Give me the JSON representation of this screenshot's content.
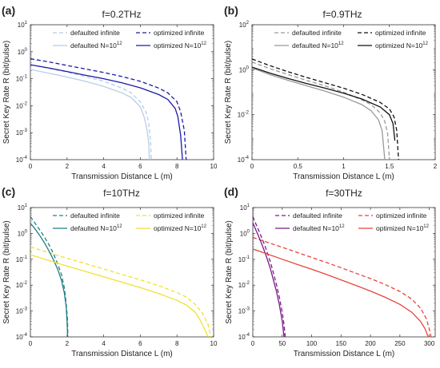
{
  "chart_data": [
    {
      "type": "line",
      "panel_label": "(a)",
      "title": "f=0.2THz",
      "xlabel": "Transmission Distance L (m)",
      "ylabel": "Secret Key Rate R (bit/pulse)",
      "xlim": [
        0,
        10
      ],
      "ylim_log10": [
        -4,
        1
      ],
      "log_y": true,
      "x_ticks": [
        "0",
        "2",
        "4",
        "6",
        "8",
        "10"
      ],
      "y_ticks": [
        {
          "base": "10",
          "exp": "1"
        },
        {
          "base": "10",
          "exp": "0"
        },
        {
          "base": "10",
          "exp": "-1"
        },
        {
          "base": "10",
          "exp": "-2"
        },
        {
          "base": "10",
          "exp": "-3"
        },
        {
          "base": "10",
          "exp": "-4"
        }
      ],
      "legend_position": "top-right",
      "legend": [
        {
          "text": "defaulted infinite",
          "sup": ""
        },
        {
          "text": "optimized infinite",
          "sup": ""
        },
        {
          "text": "defaulted N=10",
          "sup": "12"
        },
        {
          "text": "optimized N=10",
          "sup": "12"
        }
      ],
      "series": [
        {
          "color": "#b8cde8",
          "dashed": true,
          "x": [
            0,
            1,
            2,
            3,
            4,
            5,
            5.5,
            6,
            6.3,
            6.45,
            6.55,
            6.6
          ],
          "y": [
            0.33,
            0.24,
            0.175,
            0.12,
            0.08,
            0.045,
            0.03,
            0.014,
            0.006,
            0.0025,
            0.0006,
            0.0001
          ]
        },
        {
          "color": "#1a1aa8",
          "dashed": true,
          "x": [
            0,
            1,
            2,
            3,
            4,
            5,
            6,
            7,
            7.5,
            8,
            8.2,
            8.4,
            8.5
          ],
          "y": [
            0.55,
            0.42,
            0.31,
            0.23,
            0.17,
            0.12,
            0.08,
            0.045,
            0.03,
            0.014,
            0.006,
            0.0012,
            0.0001
          ]
        },
        {
          "color": "#b8cde8",
          "dashed": false,
          "x": [
            0,
            1,
            2,
            3,
            4,
            5,
            5.5,
            6,
            6.2,
            6.35,
            6.45,
            6.5
          ],
          "y": [
            0.22,
            0.16,
            0.115,
            0.08,
            0.052,
            0.03,
            0.02,
            0.009,
            0.004,
            0.0015,
            0.0005,
            0.0001
          ]
        },
        {
          "color": "#1a1aa8",
          "dashed": false,
          "x": [
            0,
            1,
            2,
            3,
            4,
            5,
            6,
            7,
            7.5,
            7.9,
            8.05,
            8.2,
            8.3
          ],
          "y": [
            0.33,
            0.25,
            0.185,
            0.135,
            0.1,
            0.07,
            0.046,
            0.026,
            0.017,
            0.008,
            0.004,
            0.0008,
            0.0001
          ]
        }
      ]
    },
    {
      "type": "line",
      "panel_label": "(b)",
      "title": "f=0.9THz",
      "xlabel": "Transmission Distance L (m)",
      "ylabel": "Secret Key Rate R (bit/pulse)",
      "xlim": [
        0,
        2
      ],
      "ylim_log10": [
        -4,
        2
      ],
      "log_y": true,
      "x_ticks": [
        "0",
        "0.5",
        "1",
        "1.5",
        "2"
      ],
      "y_ticks": [
        {
          "base": "10",
          "exp": "2"
        },
        {
          "base": "10",
          "exp": "0"
        },
        {
          "base": "10",
          "exp": "-2"
        },
        {
          "base": "10",
          "exp": "-4"
        }
      ],
      "legend_position": "top-right",
      "legend": [
        {
          "text": "defaulted infinite",
          "sup": ""
        },
        {
          "text": "optimized infinite",
          "sup": ""
        },
        {
          "text": "defaulted N=10",
          "sup": "12"
        },
        {
          "text": "optimized N=10",
          "sup": "12"
        }
      ],
      "series": [
        {
          "color": "#999999",
          "dashed": true,
          "x": [
            0,
            0.2,
            0.4,
            0.6,
            0.8,
            1.0,
            1.2,
            1.3,
            1.4,
            1.45,
            1.48,
            1.5
          ],
          "y": [
            2.2,
            1.1,
            0.6,
            0.33,
            0.19,
            0.1,
            0.045,
            0.028,
            0.012,
            0.005,
            0.0015,
            0.0001
          ]
        },
        {
          "color": "#111111",
          "dashed": true,
          "x": [
            0,
            0.2,
            0.4,
            0.6,
            0.8,
            1.0,
            1.2,
            1.4,
            1.5,
            1.55,
            1.58,
            1.6
          ],
          "y": [
            3.0,
            1.5,
            0.8,
            0.45,
            0.26,
            0.15,
            0.08,
            0.035,
            0.018,
            0.008,
            0.002,
            0.0001
          ]
        },
        {
          "color": "#999999",
          "dashed": false,
          "x": [
            0,
            0.2,
            0.4,
            0.6,
            0.8,
            1.0,
            1.2,
            1.3,
            1.38,
            1.42,
            1.45
          ],
          "y": [
            1.2,
            0.6,
            0.33,
            0.19,
            0.11,
            0.06,
            0.028,
            0.015,
            0.006,
            0.002,
            0.0001
          ]
        },
        {
          "color": "#111111",
          "dashed": false,
          "x": [
            0,
            0.2,
            0.4,
            0.6,
            0.8,
            1.0,
            1.2,
            1.4,
            1.5,
            1.54,
            1.56
          ],
          "y": [
            1.3,
            0.7,
            0.4,
            0.24,
            0.15,
            0.09,
            0.05,
            0.022,
            0.01,
            0.004,
            0.0007
          ]
        }
      ]
    },
    {
      "type": "line",
      "panel_label": "(c)",
      "title": "f=10THz",
      "xlabel": "Transmission Distance L (m)",
      "ylabel": "Secret Key Rate R (bit/pulse)",
      "xlim": [
        0,
        10
      ],
      "ylim_log10": [
        -4,
        1
      ],
      "log_y": true,
      "x_ticks": [
        "0",
        "2",
        "4",
        "6",
        "8",
        "10"
      ],
      "y_ticks": [
        {
          "base": "10",
          "exp": "1"
        },
        {
          "base": "10",
          "exp": "0"
        },
        {
          "base": "10",
          "exp": "-1"
        },
        {
          "base": "10",
          "exp": "-2"
        },
        {
          "base": "10",
          "exp": "-3"
        },
        {
          "base": "10",
          "exp": "-4"
        }
      ],
      "legend_position": "top-right",
      "legend": [
        {
          "text": "defaulted infinite",
          "sup": ""
        },
        {
          "text": "optimized infinite",
          "sup": ""
        },
        {
          "text": "defaulted N=10",
          "sup": "12"
        },
        {
          "text": "optimized N=10",
          "sup": "12"
        }
      ],
      "series": [
        {
          "color": "#1f7f86",
          "dashed": true,
          "x": [
            0,
            0.25,
            0.5,
            0.75,
            1.0,
            1.25,
            1.5,
            1.7,
            1.85,
            1.95,
            2.02,
            2.05
          ],
          "y": [
            4.5,
            2.5,
            1.4,
            0.75,
            0.38,
            0.17,
            0.065,
            0.025,
            0.008,
            0.002,
            0.0005,
            0.0001
          ]
        },
        {
          "color": "#f2e030",
          "dashed": true,
          "x": [
            0,
            1,
            2,
            3,
            4,
            5,
            6,
            7,
            8,
            8.5,
            9,
            9.4,
            9.7,
            9.85
          ],
          "y": [
            0.3,
            0.18,
            0.11,
            0.068,
            0.042,
            0.026,
            0.016,
            0.0095,
            0.0052,
            0.0035,
            0.0018,
            0.0008,
            0.0003,
            0.0001
          ]
        },
        {
          "color": "#1f7f86",
          "dashed": false,
          "x": [
            0,
            0.25,
            0.5,
            0.75,
            1.0,
            1.25,
            1.5,
            1.7,
            1.85,
            1.95,
            2.0,
            2.03
          ],
          "y": [
            2.5,
            1.5,
            0.85,
            0.45,
            0.22,
            0.1,
            0.04,
            0.015,
            0.005,
            0.0015,
            0.0004,
            0.0001
          ]
        },
        {
          "color": "#f2e030",
          "dashed": false,
          "x": [
            0,
            1,
            2,
            3,
            4,
            5,
            6,
            7,
            8,
            8.5,
            9,
            9.3,
            9.55,
            9.7
          ],
          "y": [
            0.15,
            0.09,
            0.055,
            0.034,
            0.021,
            0.013,
            0.008,
            0.0047,
            0.0026,
            0.0017,
            0.0009,
            0.0004,
            0.00017,
            0.0001
          ]
        }
      ]
    },
    {
      "type": "line",
      "panel_label": "(d)",
      "title": "f=30THz",
      "xlabel": "Transmission Distance L (m)",
      "ylabel": "Secret Key Rate R (bit/pulse)",
      "xlim": [
        0,
        310
      ],
      "ylim_log10": [
        -4,
        1
      ],
      "log_y": true,
      "x_ticks": [
        "0",
        "50",
        "100",
        "150",
        "200",
        "250",
        "300"
      ],
      "x_tick_values": [
        0,
        50,
        100,
        150,
        200,
        250,
        300
      ],
      "y_ticks": [
        {
          "base": "10",
          "exp": "1"
        },
        {
          "base": "10",
          "exp": "0"
        },
        {
          "base": "10",
          "exp": "-1"
        },
        {
          "base": "10",
          "exp": "-2"
        },
        {
          "base": "10",
          "exp": "-3"
        },
        {
          "base": "10",
          "exp": "-4"
        }
      ],
      "legend_position": "top-right",
      "legend": [
        {
          "text": "defaulted infinite",
          "sup": ""
        },
        {
          "text": "optimized infinite",
          "sup": ""
        },
        {
          "text": "defaulted N=10",
          "sup": "12"
        },
        {
          "text": "optimized N=10",
          "sup": "12"
        }
      ],
      "series": [
        {
          "color": "#7b1a8a",
          "dashed": true,
          "x": [
            0,
            5,
            10,
            15,
            20,
            25,
            30,
            35,
            40,
            45,
            50,
            53,
            55
          ],
          "y": [
            4.5,
            2.4,
            1.3,
            0.7,
            0.36,
            0.17,
            0.075,
            0.03,
            0.011,
            0.0035,
            0.0009,
            0.0003,
            0.0001
          ]
        },
        {
          "color": "#e8453c",
          "dashed": true,
          "x": [
            0,
            25,
            50,
            75,
            100,
            125,
            150,
            175,
            200,
            225,
            250,
            270,
            285,
            295,
            300,
            303
          ],
          "y": [
            0.7,
            0.45,
            0.29,
            0.185,
            0.118,
            0.075,
            0.047,
            0.029,
            0.018,
            0.0105,
            0.0057,
            0.0029,
            0.0013,
            0.0005,
            0.0002,
            0.0001
          ]
        },
        {
          "color": "#7b1a8a",
          "dashed": false,
          "x": [
            0,
            5,
            10,
            15,
            20,
            25,
            30,
            35,
            40,
            45,
            50,
            53
          ],
          "y": [
            2.6,
            1.4,
            0.75,
            0.4,
            0.2,
            0.095,
            0.042,
            0.016,
            0.006,
            0.0018,
            0.0004,
            0.0001
          ]
        },
        {
          "color": "#e8453c",
          "dashed": false,
          "x": [
            0,
            25,
            50,
            75,
            100,
            125,
            150,
            175,
            200,
            225,
            250,
            270,
            285,
            293,
            298
          ],
          "y": [
            0.25,
            0.16,
            0.1,
            0.064,
            0.041,
            0.026,
            0.016,
            0.0098,
            0.0059,
            0.0034,
            0.0018,
            0.0009,
            0.0004,
            0.0002,
            0.0001
          ]
        }
      ]
    }
  ]
}
